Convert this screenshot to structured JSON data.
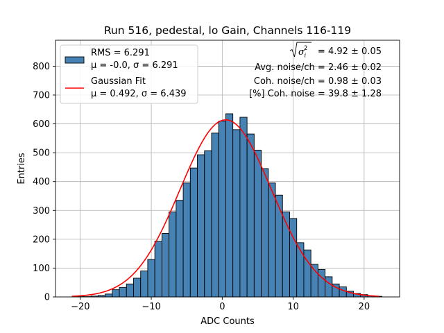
{
  "chart_data": {
    "type": "bar",
    "title": "Run 516, pedestal, lo Gain, Channels 116-119",
    "xlabel": "ADC Counts",
    "ylabel": "Entries",
    "xlim": [
      -23.5,
      25
    ],
    "ylim": [
      0,
      890
    ],
    "x_ticks": [
      -20,
      -10,
      0,
      10,
      20
    ],
    "x_tick_labels": [
      "−20",
      "−10",
      "0",
      "10",
      "20"
    ],
    "y_ticks": [
      0,
      100,
      200,
      300,
      400,
      500,
      600,
      700,
      800
    ],
    "y_tick_labels": [
      "0",
      "100",
      "200",
      "300",
      "400",
      "500",
      "600",
      "700",
      "800"
    ],
    "grid": true,
    "bar_color": "#4682b4",
    "fit_color": "#ff0000",
    "histogram": {
      "bin_left_edges": [
        -20.5,
        -19.5,
        -18.5,
        -17.5,
        -16.5,
        -15.5,
        -14.5,
        -13.5,
        -12.5,
        -11.5,
        -10.5,
        -9.5,
        -8.5,
        -7.5,
        -6.5,
        -5.5,
        -4.5,
        -3.5,
        -2.5,
        -1.5,
        -0.5,
        0.5,
        1.5,
        2.5,
        3.5,
        4.5,
        5.5,
        6.5,
        7.5,
        8.5,
        9.5,
        10.5,
        11.5,
        12.5,
        13.5,
        14.5,
        15.5,
        16.5,
        17.5,
        18.5,
        19.5,
        20.5,
        21.5
      ],
      "bin_width": 1,
      "values": [
        1,
        1,
        3,
        5,
        10,
        25,
        33,
        45,
        65,
        90,
        130,
        193,
        220,
        295,
        335,
        395,
        447,
        493,
        507,
        568,
        610,
        635,
        580,
        623,
        565,
        509,
        445,
        395,
        353,
        295,
        272,
        188,
        163,
        113,
        95,
        70,
        45,
        35,
        20,
        12,
        8,
        4,
        2
      ]
    },
    "gaussian_fit": {
      "mu": 0.492,
      "sigma": 6.439,
      "amplitude": 614,
      "x_range": [
        -21.2,
        22.1
      ]
    },
    "legend": {
      "position": "top-left",
      "entries": [
        {
          "kind": "patch",
          "line1": "RMS = 6.291",
          "line2": "μ = -0.0, σ = 6.291"
        },
        {
          "kind": "line",
          "line1": "Gaussian Fit",
          "line2": "μ = 0.492, σ = 6.439"
        }
      ]
    },
    "annotations": {
      "total_noise_value": "= 4.92 ± 0.05",
      "avg_noise": "Avg. noise/ch = 2.46 ± 0.02",
      "coh_noise": "Coh. noise/ch = 0.98 ± 0.03",
      "coh_noise_pct": "[%] Coh. noise = 39.8 ± 1.28"
    }
  }
}
